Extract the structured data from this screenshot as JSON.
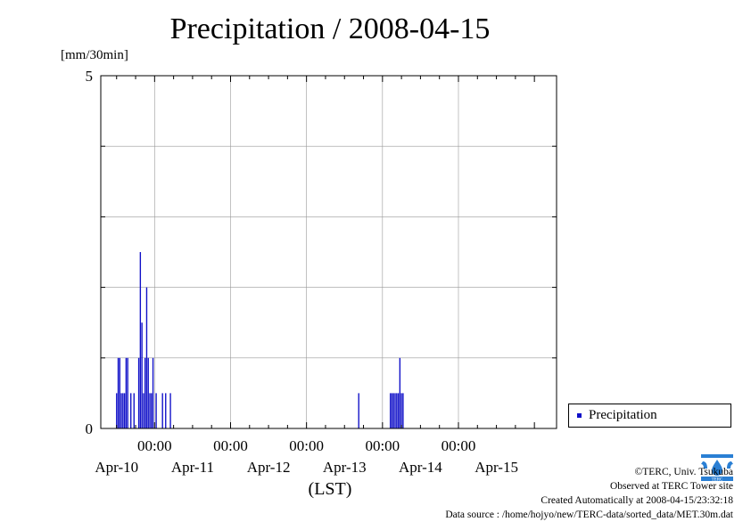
{
  "chart_data": {
    "type": "bar",
    "title": "Precipitation / 2008-04-15",
    "ylabel": "[mm/30min]",
    "xlabel": "(LST)",
    "ylim": [
      0,
      5
    ],
    "yticks": [
      "0",
      "5"
    ],
    "x_time_labels": [
      "00:00",
      "00:00",
      "00:00",
      "00:00",
      "00:00"
    ],
    "x_date_labels": [
      "Apr-10",
      "Apr-11",
      "Apr-12",
      "Apr-13",
      "Apr-14",
      "Apr-15"
    ],
    "x_range_hours": [
      -17,
      127
    ],
    "grid": true,
    "legend": {
      "position": "bottom-right",
      "entries": [
        "Precipitation"
      ]
    },
    "series": [
      {
        "name": "Precipitation",
        "color": "#1010c8",
        "points": [
          {
            "t": -12.0,
            "v": 0.5
          },
          {
            "t": -11.5,
            "v": 1.0
          },
          {
            "t": -11.0,
            "v": 1.0
          },
          {
            "t": -10.5,
            "v": 0.5
          },
          {
            "t": -10.0,
            "v": 0.5
          },
          {
            "t": -9.5,
            "v": 0.5
          },
          {
            "t": -9.0,
            "v": 1.0
          },
          {
            "t": -8.5,
            "v": 1.0
          },
          {
            "t": -7.5,
            "v": 0.5
          },
          {
            "t": -6.5,
            "v": 0.5
          },
          {
            "t": -5.0,
            "v": 1.0
          },
          {
            "t": -4.5,
            "v": 2.5
          },
          {
            "t": -4.0,
            "v": 1.5
          },
          {
            "t": -3.5,
            "v": 0.5
          },
          {
            "t": -3.0,
            "v": 1.0
          },
          {
            "t": -2.5,
            "v": 2.0
          },
          {
            "t": -2.0,
            "v": 1.0
          },
          {
            "t": -1.5,
            "v": 0.5
          },
          {
            "t": -1.0,
            "v": 0.5
          },
          {
            "t": -0.5,
            "v": 1.0
          },
          {
            "t": 0.5,
            "v": 0.5
          },
          {
            "t": 2.5,
            "v": 0.5
          },
          {
            "t": 3.5,
            "v": 0.5
          },
          {
            "t": 5.0,
            "v": 0.5
          },
          {
            "t": 64.5,
            "v": 0.5
          },
          {
            "t": 74.5,
            "v": 0.5
          },
          {
            "t": 75.0,
            "v": 0.5
          },
          {
            "t": 75.5,
            "v": 0.5
          },
          {
            "t": 76.0,
            "v": 0.5
          },
          {
            "t": 76.5,
            "v": 0.5
          },
          {
            "t": 77.0,
            "v": 0.5
          },
          {
            "t": 77.5,
            "v": 1.0
          },
          {
            "t": 78.0,
            "v": 0.5
          },
          {
            "t": 78.5,
            "v": 0.5
          }
        ]
      }
    ]
  },
  "credits": {
    "copyright": "©TERC, Univ. Tsukuba",
    "observed": "Observed at TERC Tower site",
    "created": "Created Automatically at 2008-04-15/23:32:18",
    "source": "Data source : /home/hojyo/new/TERC-data/sorted_data/MET.30m.dat"
  },
  "logo": {
    "text": "TERC",
    "color": "#2a7fd4"
  }
}
